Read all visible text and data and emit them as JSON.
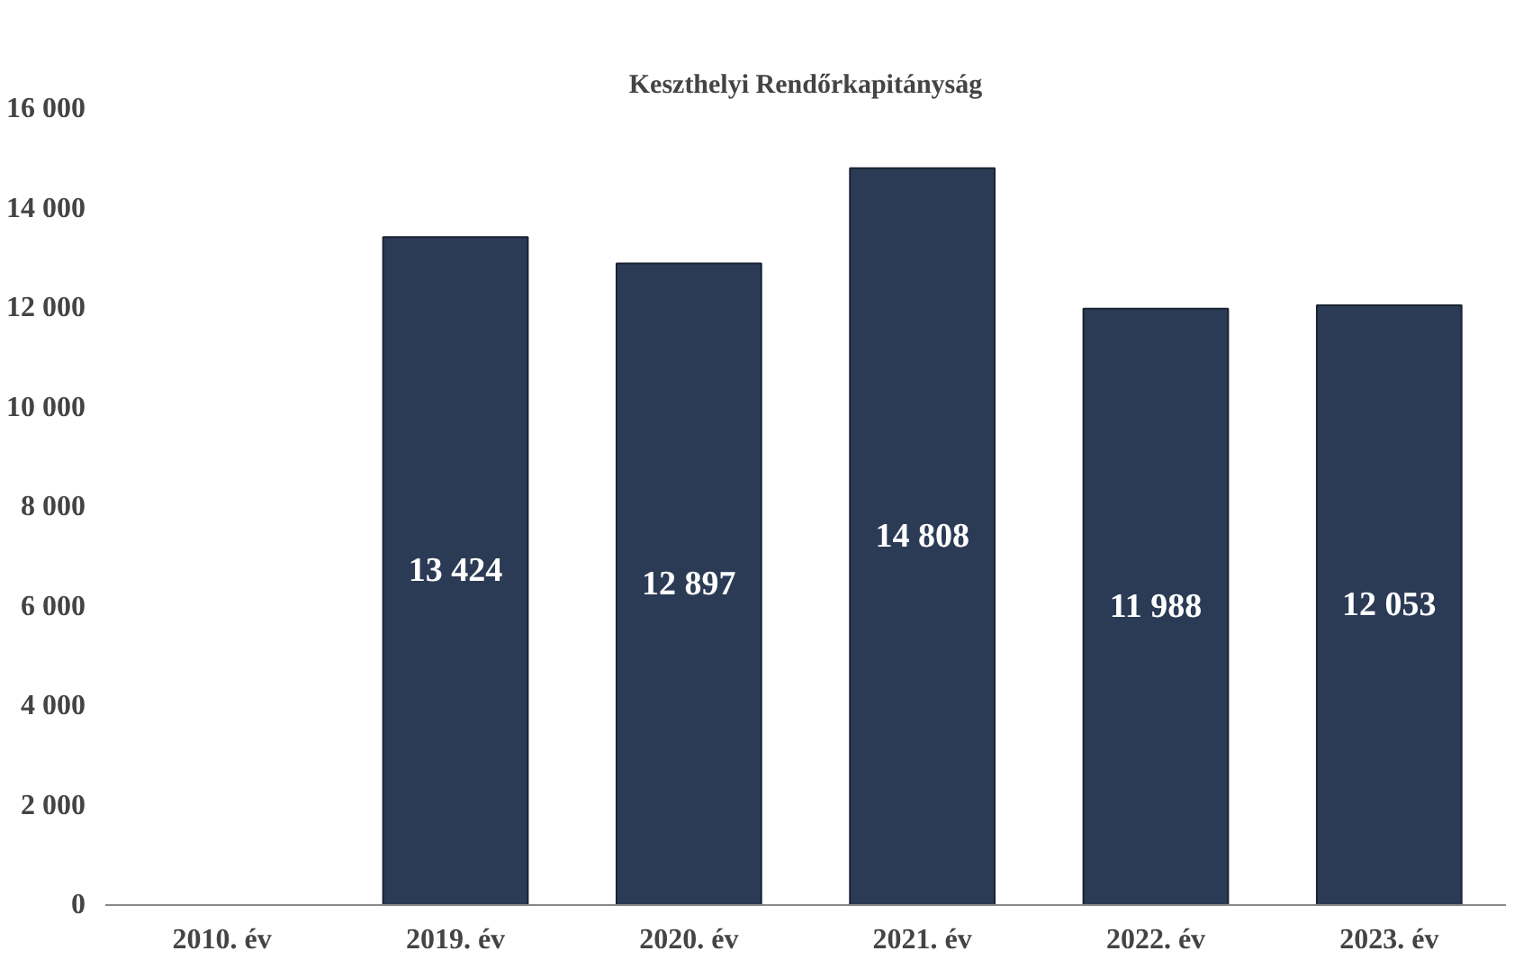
{
  "chart_data": {
    "type": "bar",
    "title": "Keszthelyi Rendőrkapitányság",
    "categories": [
      "2010. év",
      "2019. év",
      "2020. év",
      "2021. év",
      "2022. év",
      "2023. év"
    ],
    "values": [
      null,
      13424,
      12897,
      14808,
      11988,
      12053
    ],
    "value_labels": [
      null,
      "13 424",
      "12 897",
      "14 808",
      "11 988",
      "12 053"
    ],
    "color": "#2c3b55",
    "ylim": [
      0,
      16000
    ],
    "yticks": [
      {
        "value": 0,
        "label": "0"
      },
      {
        "value": 2000,
        "label": "2 000"
      },
      {
        "value": 4000,
        "label": "4 000"
      },
      {
        "value": 6000,
        "label": "6 000"
      },
      {
        "value": 8000,
        "label": "8 000"
      },
      {
        "value": 10000,
        "label": "10 000"
      },
      {
        "value": 12000,
        "label": "12 000"
      },
      {
        "value": 14000,
        "label": "14 000"
      },
      {
        "value": 16000,
        "label": "16 000"
      }
    ],
    "grid": false
  }
}
